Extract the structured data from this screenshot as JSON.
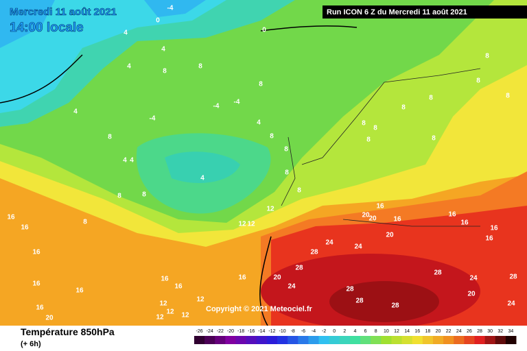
{
  "header": {
    "date": "Mercredi 11 août 2021",
    "time": "14:00 locale",
    "run": "Run ICON 6 Z du Mercredi 11 août 2021"
  },
  "copyright": "Copyright © 2021 Meteociel.fr",
  "footer": {
    "title": "Température 850hPa",
    "lead": "(+ 6h)"
  },
  "scale": {
    "labels": [
      -26,
      -24,
      -22,
      -20,
      -18,
      -16,
      -14,
      -12,
      -10,
      -8,
      -6,
      -4,
      -2,
      0,
      2,
      4,
      6,
      8,
      10,
      12,
      14,
      16,
      18,
      20,
      22,
      24,
      26,
      28,
      30,
      32,
      34
    ]
  },
  "contour_labels": [
    -4,
    0,
    4,
    0,
    4,
    4,
    8,
    8,
    8,
    8,
    8,
    8,
    -4,
    -4,
    -4,
    4,
    4,
    8,
    8,
    8,
    4,
    4,
    4,
    8,
    8,
    8,
    8,
    8,
    8,
    8,
    8,
    8,
    8,
    12,
    12,
    12,
    8,
    16,
    16,
    16,
    16,
    16,
    16,
    16,
    16,
    20,
    20,
    20,
    24,
    24,
    28,
    28,
    20,
    24,
    16,
    28,
    24,
    20,
    24,
    28,
    28,
    28,
    28,
    16,
    16,
    16,
    16,
    20,
    16,
    16,
    12,
    12,
    12,
    12,
    12
  ]
}
